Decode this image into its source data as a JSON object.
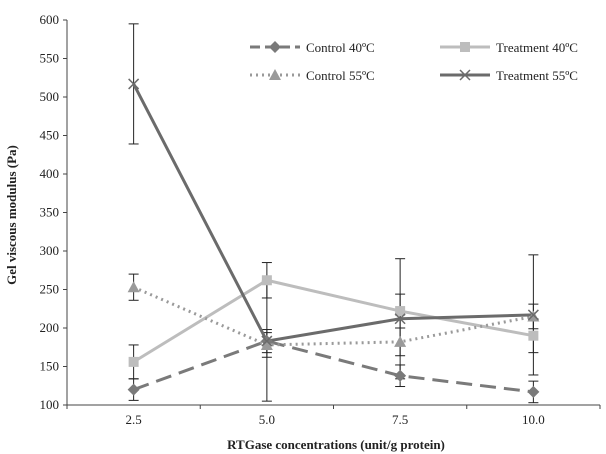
{
  "chart_data": {
    "type": "line",
    "title": "",
    "xlabel": "RTGase concentrations (unit/g protein)",
    "ylabel": "Gel viscous modulus (Pa)",
    "categories": [
      "2.5",
      "5.0",
      "7.5",
      "10.0"
    ],
    "ylim": [
      100,
      600
    ],
    "yticks": [
      100,
      150,
      200,
      250,
      300,
      350,
      400,
      450,
      500,
      550,
      600
    ],
    "grid": false,
    "legend_position": "top-right",
    "series": [
      {
        "name": "Control 40ºC",
        "values": [
          120,
          183,
          138,
          117
        ],
        "error": [
          14,
          15,
          14,
          14
        ],
        "color": "#7a7a7a",
        "dash": "long-dash",
        "marker": "diamond"
      },
      {
        "name": "Treatment 40ºC",
        "values": [
          156,
          262,
          222,
          190
        ],
        "error": [
          22,
          23,
          22,
          22
        ],
        "color": "#bdbdbd",
        "dash": "solid",
        "marker": "square"
      },
      {
        "name": "Control 55ºC",
        "values": [
          253,
          178,
          182,
          215
        ],
        "error": [
          17,
          16,
          18,
          16
        ],
        "color": "#9a9a9a",
        "dash": "dotted",
        "marker": "triangle"
      },
      {
        "name": "Treatment 55ºC",
        "values": [
          517,
          183,
          212,
          217
        ],
        "error": [
          78,
          78,
          78,
          78
        ],
        "color": "#6b6b6b",
        "dash": "solid",
        "marker": "x"
      }
    ]
  }
}
